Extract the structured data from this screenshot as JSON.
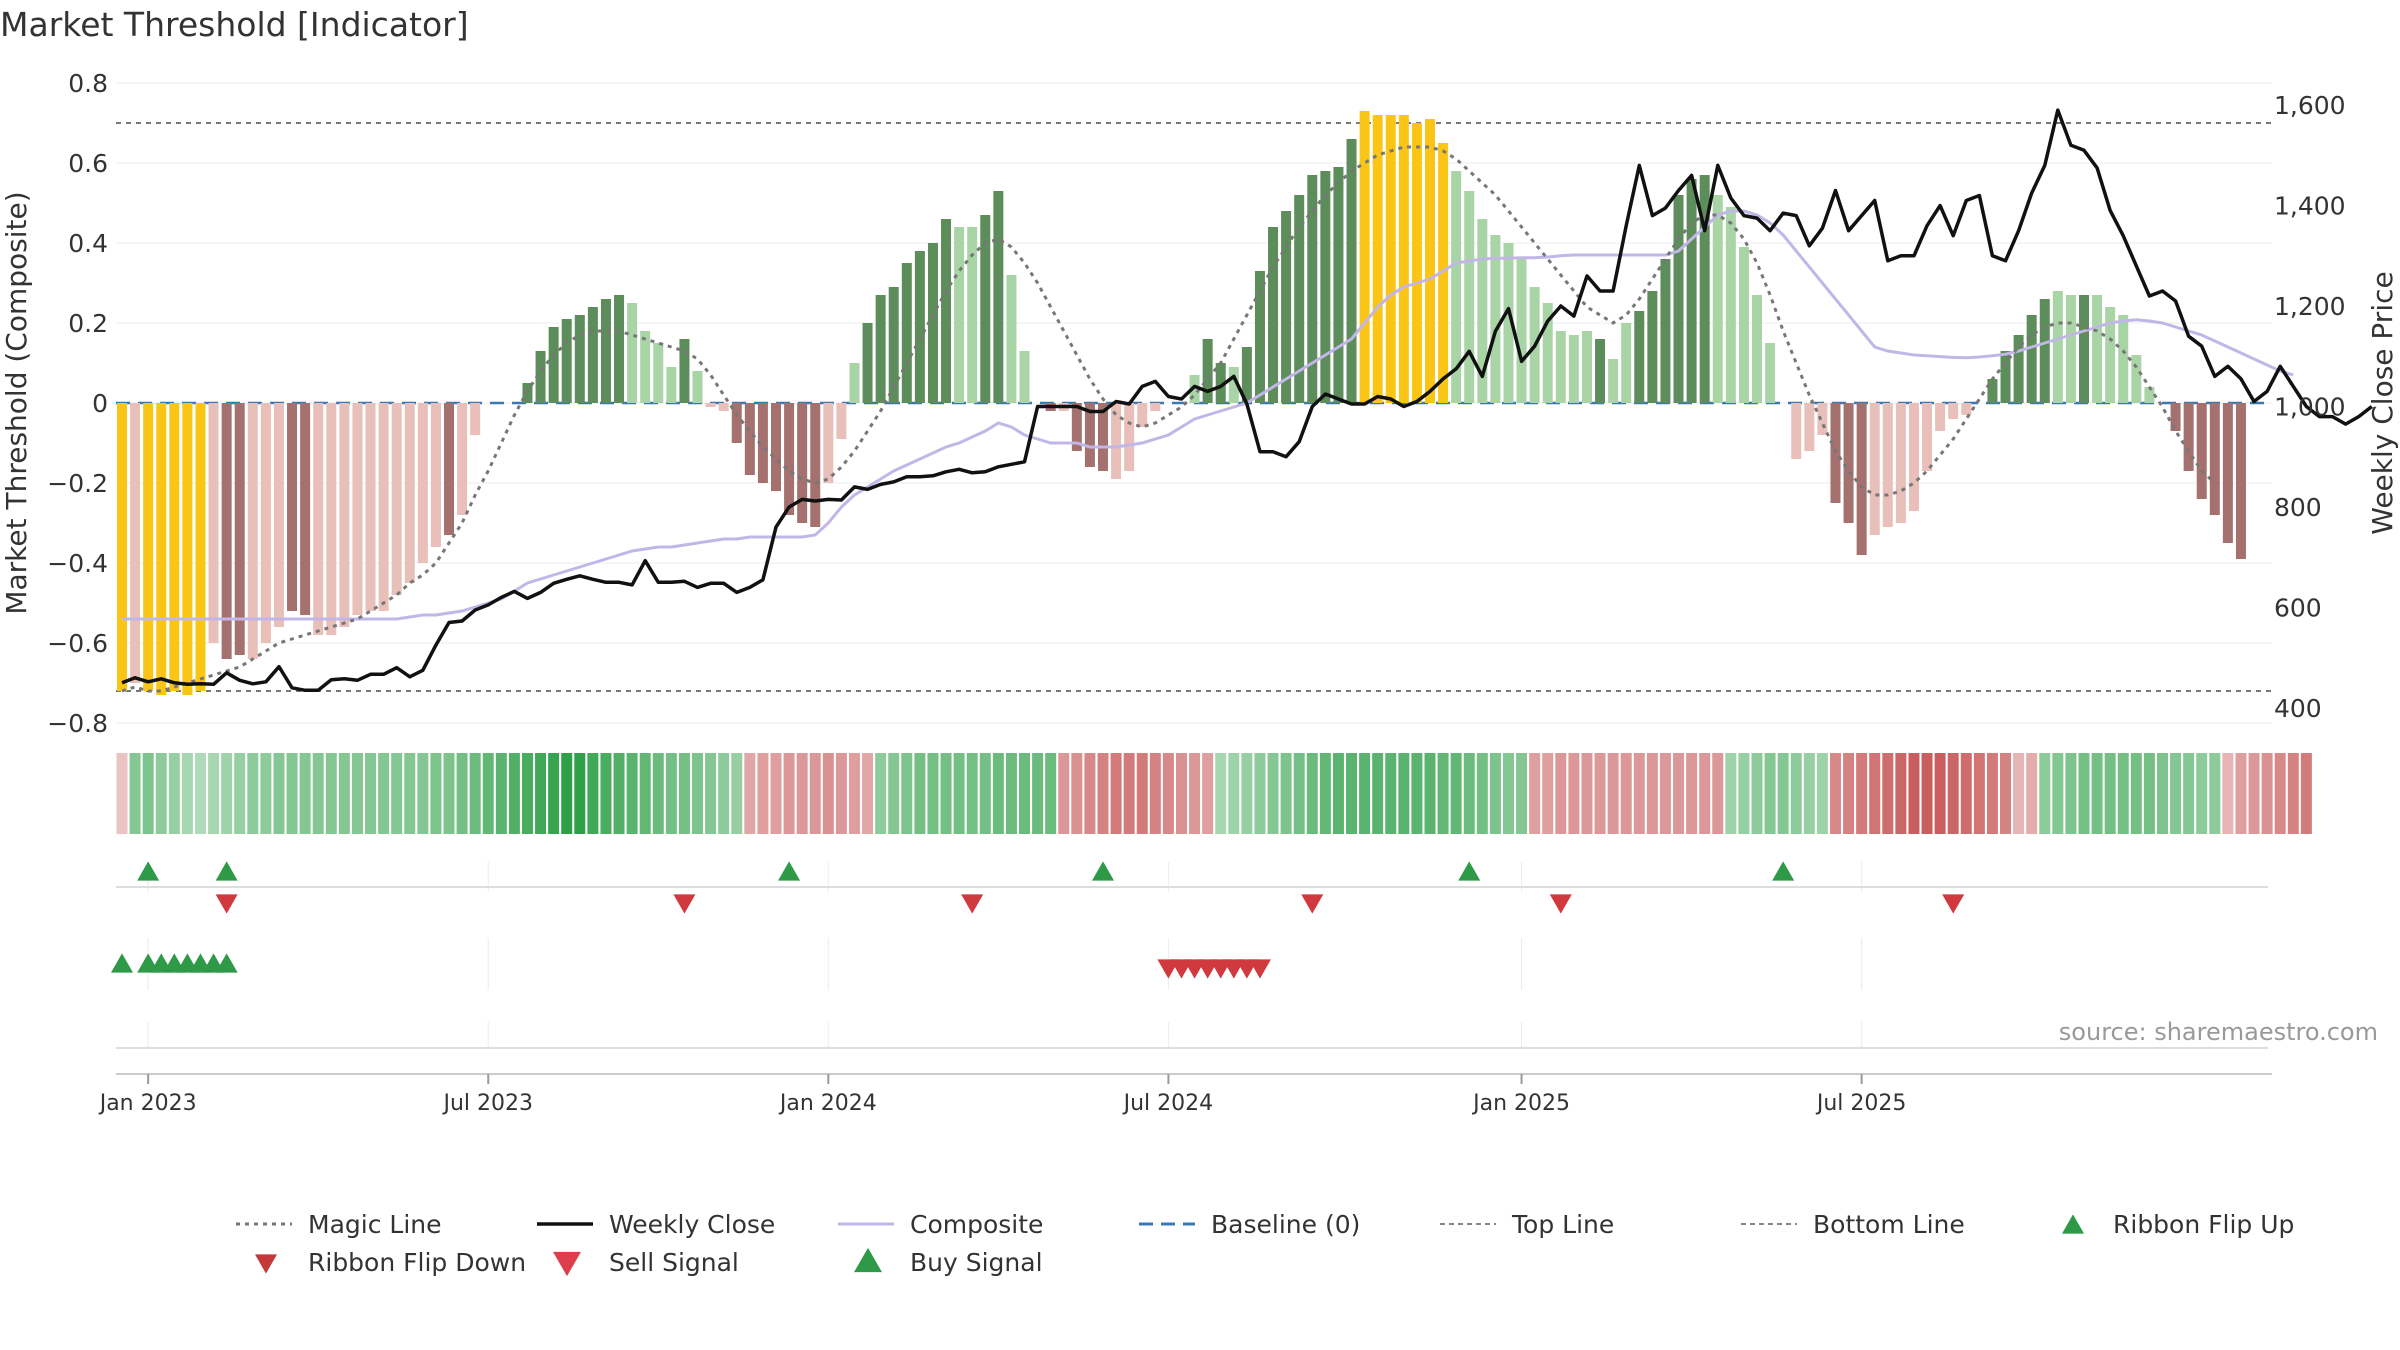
{
  "title": "Market Threshold [Indicator]",
  "source": "source: sharemaestro.com",
  "colors": {
    "dark_green": "#5c8d5a",
    "light_green": "#a8d4a6",
    "dark_red": "#a4716f",
    "light_red": "#e9bfba",
    "gold": "#fac515",
    "composite": "#c2b6e8",
    "close": "#111111",
    "magic": "#777777",
    "baseline": "#3a78b4",
    "grid": "#ececec",
    "buy": "#2e9a48",
    "sell": "#d03a3f"
  },
  "chart_data": {
    "type": "bar",
    "title": "Market Threshold [Indicator]",
    "ylabel": "Market Threshold (Composite)",
    "y2label": "Weekly Close Price",
    "ylim": [
      -0.8,
      0.8
    ],
    "y2lim": [
      370,
      1640
    ],
    "yticks": [
      "0.8",
      "0.6",
      "0.4",
      "0.2",
      "0",
      "−0.2",
      "−0.4",
      "−0.6",
      "−0.8"
    ],
    "y2ticks": [
      "1,600",
      "1,400",
      "1,200",
      "1,000",
      "800",
      "600",
      "400"
    ],
    "xticks": [
      "Jan 2023",
      "Jul 2023",
      "Jan 2024",
      "Jul 2024",
      "Jan 2025",
      "Jul 2025"
    ],
    "start_date": "2022-12-19",
    "top_line": 0.7,
    "bottom_line": -0.72,
    "bars": {
      "values": [
        -0.72,
        -0.7,
        -0.72,
        -0.73,
        -0.72,
        -0.73,
        -0.72,
        -0.6,
        -0.64,
        -0.63,
        -0.64,
        -0.6,
        -0.56,
        -0.52,
        -0.53,
        -0.58,
        -0.58,
        -0.56,
        -0.53,
        -0.52,
        -0.52,
        -0.48,
        -0.45,
        -0.4,
        -0.36,
        -0.33,
        -0.28,
        -0.08,
        0,
        0.0,
        0.0,
        0.05,
        0.13,
        0.19,
        0.21,
        0.22,
        0.24,
        0.26,
        0.27,
        0.25,
        0.18,
        0.15,
        0.09,
        0.16,
        0.08,
        -0.01,
        -0.02,
        -0.1,
        -0.18,
        -0.2,
        -0.22,
        -0.28,
        -0.3,
        -0.31,
        -0.2,
        -0.09,
        0.1,
        0.2,
        0.27,
        0.29,
        0.35,
        0.38,
        0.4,
        0.46,
        0.44,
        0.44,
        0.47,
        0.53,
        0.32,
        0.13,
        0.0,
        -0.02,
        -0.02,
        -0.12,
        -0.16,
        -0.17,
        -0.19,
        -0.17,
        -0.06,
        -0.02,
        0.0,
        0.0,
        0.07,
        0.16,
        0.1,
        0.09,
        0.14,
        0.33,
        0.44,
        0.48,
        0.52,
        0.57,
        0.58,
        0.59,
        0.66,
        0.73,
        0.72,
        0.72,
        0.72,
        0.7,
        0.71,
        0.65,
        0.58,
        0.53,
        0.46,
        0.42,
        0.4,
        0.36,
        0.29,
        0.25,
        0.18,
        0.17,
        0.18,
        0.16,
        0.11,
        0.2,
        0.23,
        0.28,
        0.36,
        0.52,
        0.56,
        0.57,
        0.52,
        0.49,
        0.39,
        0.27,
        0.15,
        0.0,
        -0.14,
        -0.12,
        -0.08,
        -0.25,
        -0.3,
        -0.38,
        -0.33,
        -0.31,
        -0.3,
        -0.27,
        -0.17,
        -0.07,
        -0.04,
        -0.03,
        0.0,
        0.06,
        0.13,
        0.17,
        0.22,
        0.26,
        0.28,
        0.27,
        0.27,
        0.27,
        0.24,
        0.22,
        0.12,
        0.04,
        0.0,
        -0.07,
        -0.17,
        -0.24,
        -0.28,
        -0.35,
        -0.39
      ],
      "color_classes": [
        "gold",
        "lightred",
        "gold",
        "gold",
        "gold",
        "gold",
        "gold",
        "lightred",
        "darkred",
        "darkred",
        "lightred",
        "lightred",
        "lightred",
        "darkred",
        "darkred",
        "lightred",
        "lightred",
        "lightred",
        "lightred",
        "lightred",
        "lightred",
        "lightred",
        "lightred",
        "lightred",
        "lightred",
        "darkred",
        "lightred",
        "lightred",
        "lightgreen",
        "lightgreen",
        "lightgreen",
        "darkgreen",
        "darkgreen",
        "darkgreen",
        "darkgreen",
        "darkgreen",
        "darkgreen",
        "darkgreen",
        "darkgreen",
        "lightgreen",
        "lightgreen",
        "lightgreen",
        "lightgreen",
        "darkgreen",
        "lightgreen",
        "lightred",
        "lightred",
        "darkred",
        "darkred",
        "darkred",
        "darkred",
        "darkred",
        "darkred",
        "darkred",
        "lightred",
        "lightred",
        "lightgreen",
        "darkgreen",
        "darkgreen",
        "darkgreen",
        "darkgreen",
        "darkgreen",
        "darkgreen",
        "darkgreen",
        "lightgreen",
        "lightgreen",
        "darkgreen",
        "darkgreen",
        "lightgreen",
        "lightgreen",
        "lightgreen",
        "darkred",
        "lightred",
        "darkred",
        "darkred",
        "darkred",
        "lightred",
        "lightred",
        "lightred",
        "lightred",
        "lightgreen",
        "lightgreen",
        "lightgreen",
        "darkgreen",
        "darkgreen",
        "lightgreen",
        "darkgreen",
        "darkgreen",
        "darkgreen",
        "darkgreen",
        "darkgreen",
        "darkgreen",
        "darkgreen",
        "darkgreen",
        "darkgreen",
        "gold",
        "gold",
        "gold",
        "gold",
        "gold",
        "gold",
        "gold",
        "lightgreen",
        "lightgreen",
        "lightgreen",
        "lightgreen",
        "lightgreen",
        "lightgreen",
        "lightgreen",
        "lightgreen",
        "lightgreen",
        "lightgreen",
        "lightgreen",
        "darkgreen",
        "lightgreen",
        "lightgreen",
        "darkgreen",
        "darkgreen",
        "darkgreen",
        "darkgreen",
        "darkgreen",
        "darkgreen",
        "lightgreen",
        "lightgreen",
        "lightgreen",
        "lightgreen",
        "lightgreen",
        "lightgreen",
        "lightred",
        "lightred",
        "lightred",
        "darkred",
        "darkred",
        "darkred",
        "lightred",
        "lightred",
        "lightred",
        "lightred",
        "lightred",
        "lightred",
        "lightred",
        "lightred",
        "lightgreen",
        "darkgreen",
        "darkgreen",
        "darkgreen",
        "darkgreen",
        "darkgreen",
        "lightgreen",
        "lightgreen",
        "darkgreen",
        "lightgreen",
        "lightgreen",
        "lightgreen",
        "lightgreen",
        "lightgreen",
        "lightred",
        "darkred",
        "darkred",
        "darkred",
        "darkred",
        "darkred",
        "darkred"
      ]
    },
    "magic_line": [
      -0.72,
      -0.71,
      -0.72,
      -0.72,
      -0.71,
      -0.7,
      -0.69,
      -0.68,
      -0.67,
      -0.66,
      -0.64,
      -0.62,
      -0.6,
      -0.59,
      -0.58,
      -0.57,
      -0.56,
      -0.55,
      -0.54,
      -0.52,
      -0.5,
      -0.48,
      -0.45,
      -0.43,
      -0.4,
      -0.35,
      -0.3,
      -0.23,
      -0.17,
      -0.1,
      -0.03,
      0.03,
      0.08,
      0.12,
      0.15,
      0.17,
      0.18,
      0.18,
      0.18,
      0.17,
      0.16,
      0.15,
      0.14,
      0.13,
      0.11,
      0.07,
      0.02,
      -0.03,
      -0.07,
      -0.11,
      -0.14,
      -0.17,
      -0.19,
      -0.2,
      -0.19,
      -0.16,
      -0.12,
      -0.07,
      -0.02,
      0.04,
      0.1,
      0.16,
      0.22,
      0.28,
      0.33,
      0.37,
      0.4,
      0.41,
      0.39,
      0.35,
      0.3,
      0.24,
      0.18,
      0.12,
      0.06,
      0.01,
      -0.03,
      -0.05,
      -0.06,
      -0.05,
      -0.03,
      -0.01,
      0.02,
      0.06,
      0.1,
      0.16,
      0.22,
      0.28,
      0.34,
      0.39,
      0.44,
      0.48,
      0.52,
      0.55,
      0.58,
      0.6,
      0.62,
      0.63,
      0.64,
      0.64,
      0.64,
      0.63,
      0.61,
      0.58,
      0.55,
      0.52,
      0.48,
      0.44,
      0.4,
      0.36,
      0.32,
      0.28,
      0.24,
      0.22,
      0.2,
      0.22,
      0.26,
      0.31,
      0.36,
      0.41,
      0.45,
      0.47,
      0.47,
      0.45,
      0.41,
      0.35,
      0.27,
      0.18,
      0.1,
      0.02,
      -0.05,
      -0.12,
      -0.17,
      -0.21,
      -0.23,
      -0.23,
      -0.22,
      -0.2,
      -0.17,
      -0.13,
      -0.09,
      -0.04,
      0.01,
      0.06,
      0.1,
      0.14,
      0.17,
      0.19,
      0.2,
      0.2,
      0.19,
      0.18,
      0.16,
      0.13,
      0.09,
      0.04,
      -0.01,
      -0.07,
      -0.12,
      -0.17,
      -0.2
    ],
    "composite": [
      -0.54,
      -0.54,
      -0.54,
      -0.54,
      -0.54,
      -0.54,
      -0.54,
      -0.54,
      -0.54,
      -0.54,
      -0.54,
      -0.54,
      -0.54,
      -0.54,
      -0.54,
      -0.54,
      -0.54,
      -0.54,
      -0.54,
      -0.54,
      -0.54,
      -0.54,
      -0.535,
      -0.53,
      -0.53,
      -0.525,
      -0.52,
      -0.51,
      -0.5,
      -0.49,
      -0.47,
      -0.45,
      -0.44,
      -0.43,
      -0.42,
      -0.41,
      -0.4,
      -0.39,
      -0.38,
      -0.37,
      -0.365,
      -0.36,
      -0.36,
      -0.355,
      -0.35,
      -0.345,
      -0.34,
      -0.34,
      -0.335,
      -0.335,
      -0.335,
      -0.335,
      -0.335,
      -0.33,
      -0.3,
      -0.26,
      -0.23,
      -0.21,
      -0.19,
      -0.17,
      -0.155,
      -0.14,
      -0.125,
      -0.11,
      -0.1,
      -0.085,
      -0.07,
      -0.05,
      -0.06,
      -0.08,
      -0.09,
      -0.1,
      -0.1,
      -0.1,
      -0.11,
      -0.11,
      -0.11,
      -0.105,
      -0.1,
      -0.09,
      -0.08,
      -0.06,
      -0.04,
      -0.03,
      -0.02,
      -0.01,
      0.0,
      0.02,
      0.04,
      0.06,
      0.08,
      0.1,
      0.12,
      0.14,
      0.16,
      0.2,
      0.24,
      0.27,
      0.29,
      0.3,
      0.31,
      0.33,
      0.35,
      0.355,
      0.36,
      0.362,
      0.362,
      0.363,
      0.363,
      0.365,
      0.368,
      0.37,
      0.37,
      0.37,
      0.37,
      0.37,
      0.37,
      0.37,
      0.37,
      0.38,
      0.41,
      0.44,
      0.47,
      0.48,
      0.48,
      0.47,
      0.45,
      0.42,
      0.38,
      0.34,
      0.3,
      0.26,
      0.22,
      0.18,
      0.14,
      0.13,
      0.125,
      0.12,
      0.118,
      0.116,
      0.114,
      0.113,
      0.115,
      0.118,
      0.122,
      0.13,
      0.14,
      0.15,
      0.16,
      0.17,
      0.18,
      0.19,
      0.2,
      0.205,
      0.208,
      0.205,
      0.2,
      0.19,
      0.18,
      0.17,
      0.155,
      0.14,
      0.125,
      0.11,
      0.095,
      0.08,
      0.07
    ],
    "weekly_close": [
      450,
      460,
      452,
      458,
      450,
      447,
      448,
      447,
      470,
      455,
      448,
      452,
      482,
      440,
      435,
      435,
      456,
      458,
      455,
      467,
      467,
      480,
      462,
      475,
      525,
      570,
      573,
      595,
      605,
      620,
      632,
      618,
      630,
      648,
      656,
      663,
      656,
      650,
      650,
      645,
      693,
      650,
      650,
      652,
      640,
      648,
      648,
      630,
      640,
      655,
      760,
      800,
      815,
      812,
      815,
      814,
      840,
      835,
      845,
      850,
      860,
      860,
      862,
      870,
      875,
      868,
      870,
      880,
      885,
      890,
      1000,
      1000,
      1000,
      1000,
      990,
      990,
      1010,
      1005,
      1040,
      1050,
      1020,
      1015,
      1040,
      1030,
      1040,
      1060,
      1005,
      910,
      910,
      900,
      930,
      1000,
      1025,
      1015,
      1005,
      1005,
      1020,
      1015,
      1000,
      1010,
      1030,
      1055,
      1075,
      1110,
      1060,
      1150,
      1195,
      1090,
      1120,
      1170,
      1200,
      1180,
      1260,
      1230,
      1230,
      1360,
      1480,
      1380,
      1395,
      1430,
      1460,
      1350,
      1480,
      1415,
      1380,
      1375,
      1350,
      1385,
      1380,
      1320,
      1355,
      1430,
      1350,
      1380,
      1410,
      1290,
      1300,
      1300,
      1360,
      1400,
      1340,
      1410,
      1420,
      1300,
      1290,
      1350,
      1425,
      1480,
      1590,
      1520,
      1510,
      1475,
      1390,
      1340,
      1280,
      1220,
      1230,
      1210,
      1140,
      1120,
      1060,
      1080,
      1055,
      1010,
      1030,
      1080,
      1040,
      1000,
      980,
      980,
      965,
      980,
      1000
    ],
    "ribbon": [
      -0.2,
      0.5,
      0.55,
      0.45,
      0.4,
      0.3,
      0.25,
      0.3,
      0.35,
      0.4,
      0.45,
      0.45,
      0.5,
      0.5,
      0.5,
      0.5,
      0.5,
      0.5,
      0.5,
      0.5,
      0.5,
      0.5,
      0.5,
      0.5,
      0.55,
      0.55,
      0.6,
      0.65,
      0.7,
      0.75,
      0.8,
      0.85,
      0.9,
      0.95,
      1,
      1,
      0.9,
      0.85,
      0.8,
      0.75,
      0.7,
      0.65,
      0.6,
      0.6,
      0.55,
      0.5,
      0.45,
      0.4,
      -0.4,
      -0.45,
      -0.45,
      -0.5,
      -0.5,
      -0.5,
      -0.55,
      -0.5,
      -0.45,
      -0.4,
      0.45,
      0.5,
      0.55,
      0.6,
      0.6,
      0.6,
      0.6,
      0.6,
      0.6,
      0.65,
      0.65,
      0.65,
      0.65,
      0.65,
      -0.5,
      -0.55,
      -0.6,
      -0.65,
      -0.7,
      -0.7,
      -0.7,
      -0.65,
      -0.6,
      -0.55,
      -0.5,
      -0.45,
      0.3,
      0.35,
      0.4,
      0.45,
      0.5,
      0.55,
      0.6,
      0.65,
      0.7,
      0.75,
      0.75,
      0.75,
      0.75,
      0.75,
      0.75,
      0.75,
      0.75,
      0.7,
      0.7,
      0.65,
      0.6,
      0.55,
      0.5,
      0.5,
      -0.45,
      -0.45,
      -0.5,
      -0.5,
      -0.5,
      -0.5,
      -0.5,
      -0.5,
      -0.5,
      -0.5,
      -0.5,
      -0.5,
      -0.5,
      -0.5,
      -0.5,
      0.35,
      0.4,
      0.45,
      0.5,
      0.5,
      0.45,
      0.4,
      0.35,
      -0.6,
      -0.65,
      -0.7,
      -0.75,
      -0.8,
      -0.85,
      -0.9,
      -0.9,
      -0.9,
      -0.85,
      -0.8,
      -0.75,
      -0.7,
      -0.65,
      -0.3,
      -0.35,
      0.45,
      0.5,
      0.55,
      0.6,
      0.6,
      0.6,
      0.6,
      0.6,
      0.6,
      0.55,
      0.5,
      0.5,
      0.45,
      0.45,
      -0.3,
      -0.45,
      -0.5,
      -0.55,
      -0.6,
      -0.65,
      -0.7
    ],
    "ribbon_flip_up": [
      "2023-01-02",
      "2023-02-13",
      "2023-12-11",
      "2024-05-27",
      "2024-12-09",
      "2025-05-26"
    ],
    "ribbon_flip_down": [
      "2023-02-13",
      "2023-10-16",
      "2024-03-18",
      "2024-09-16",
      "2025-01-27",
      "2025-08-25"
    ],
    "buy_signal": [
      "2022-12-19",
      "2023-01-02",
      "2023-01-09",
      "2023-01-16",
      "2023-01-23",
      "2023-01-30",
      "2023-02-06",
      "2023-02-13"
    ],
    "sell_signal": [
      "2024-07-01",
      "2024-07-08",
      "2024-07-15",
      "2024-07-22",
      "2024-07-29",
      "2024-08-05",
      "2024-08-12",
      "2024-08-19"
    ],
    "legend": [
      {
        "key": "magic",
        "label": "Magic Line"
      },
      {
        "key": "close",
        "label": "Weekly Close"
      },
      {
        "key": "composite",
        "label": "Composite"
      },
      {
        "key": "baseline",
        "label": "Baseline (0)"
      },
      {
        "key": "top",
        "label": "Top Line"
      },
      {
        "key": "bottom",
        "label": "Bottom Line"
      },
      {
        "key": "flipup",
        "label": "Ribbon Flip Up"
      },
      {
        "key": "flipdown",
        "label": "Ribbon Flip Down"
      },
      {
        "key": "sell",
        "label": "Sell Signal"
      },
      {
        "key": "buy",
        "label": "Buy Signal"
      }
    ]
  }
}
